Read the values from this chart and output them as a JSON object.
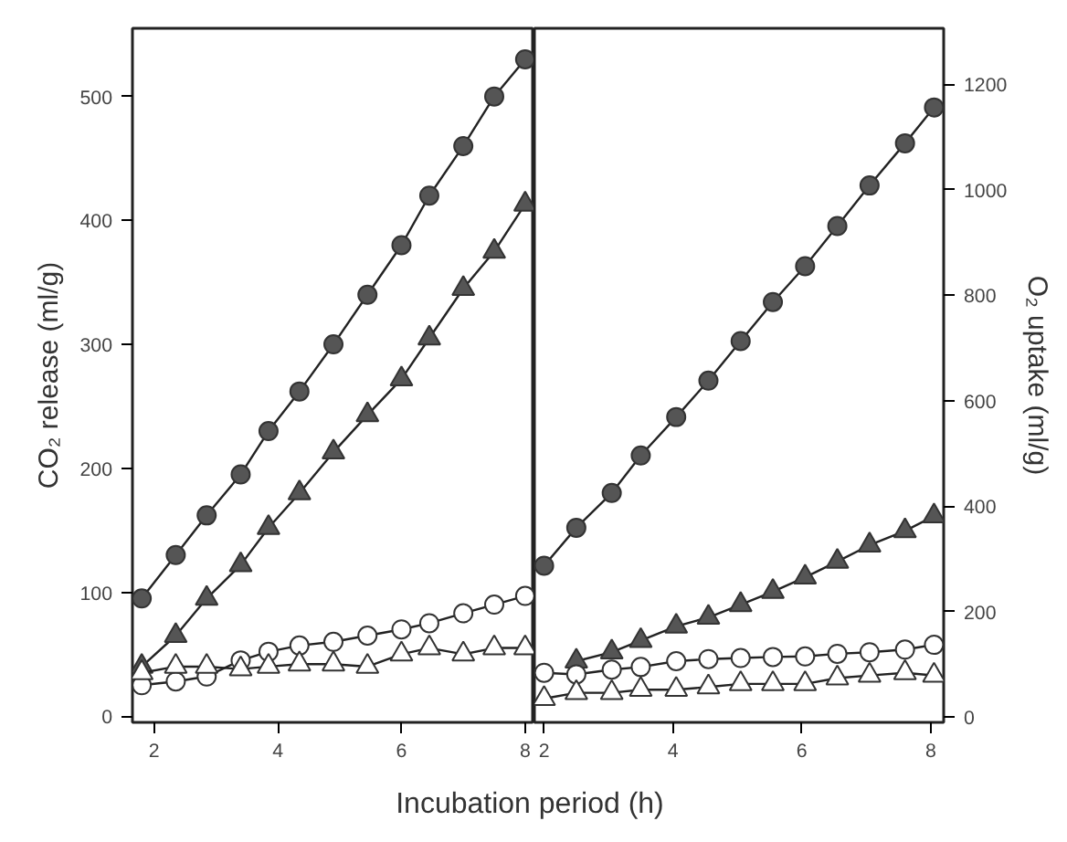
{
  "chart_data": [
    {
      "type": "line",
      "xlabel": "Incubation period (h)",
      "ylabel": "CO₂ release (ml/g)",
      "xlim": [
        1.65,
        8.15
      ],
      "xticks": [
        2,
        4,
        6,
        8
      ],
      "ylim": [
        -5,
        555
      ],
      "yticks": [
        0,
        100,
        200,
        300,
        400,
        500
      ],
      "grid": false,
      "series": [
        {
          "color": "#555555",
          "marker": "circle",
          "x": [
            1.8,
            2.35,
            2.85,
            3.4,
            3.85,
            4.35,
            4.9,
            5.45,
            6.0,
            6.45,
            7.0,
            7.5,
            8.0
          ],
          "values": [
            95,
            130,
            162,
            195,
            230,
            262,
            300,
            340,
            380,
            420,
            460,
            500,
            530
          ]
        },
        {
          "color": "#555555",
          "marker": "triangle",
          "x": [
            1.8,
            2.35,
            2.85,
            3.4,
            3.85,
            4.35,
            4.9,
            5.45,
            6.0,
            6.45,
            7.0,
            7.5,
            8.0
          ],
          "values": [
            40,
            65,
            95,
            122,
            152,
            180,
            213,
            243,
            272,
            305,
            345,
            375,
            413
          ]
        },
        {
          "color": "#ffffff",
          "marker": "circle",
          "x": [
            1.8,
            2.35,
            2.85,
            3.4,
            3.85,
            4.35,
            4.9,
            5.45,
            6.0,
            6.45,
            7.0,
            7.5,
            8.0
          ],
          "values": [
            25,
            28,
            32,
            45,
            52,
            57,
            60,
            65,
            70,
            75,
            83,
            90,
            97
          ]
        },
        {
          "color": "#ffffff",
          "marker": "triangle",
          "x": [
            1.8,
            2.35,
            2.85,
            3.4,
            3.85,
            4.35,
            4.9,
            5.45,
            6.0,
            6.45,
            7.0,
            7.5,
            8.0
          ],
          "values": [
            35,
            40,
            40,
            38,
            40,
            42,
            42,
            40,
            50,
            55,
            50,
            55,
            55
          ]
        }
      ]
    },
    {
      "type": "line",
      "y2label": "O₂ uptake (ml/g)",
      "xlim": [
        1.85,
        8.2
      ],
      "xticks": [
        2,
        4,
        6,
        8
      ],
      "y2lim": [
        -10,
        1306
      ],
      "y2ticks": [
        0,
        200,
        400,
        600,
        800,
        1000,
        1200
      ],
      "grid": false,
      "series": [
        {
          "color": "#555555",
          "marker": "circle",
          "axis": "y2",
          "x": [
            2.0,
            2.5,
            3.05,
            3.5,
            4.05,
            4.55,
            5.05,
            5.55,
            6.05,
            6.55,
            7.05,
            7.6,
            8.05
          ],
          "values": [
            287,
            359,
            425,
            496,
            569,
            638,
            713,
            787,
            855,
            931,
            1008,
            1088,
            1156
          ]
        },
        {
          "color": "#555555",
          "marker": "triangle",
          "axis": "y2",
          "x": [
            2.5,
            3.05,
            3.5,
            4.05,
            4.55,
            5.05,
            5.55,
            6.05,
            6.55,
            7.05,
            7.6,
            8.05
          ],
          "values": [
            106,
            123,
            145,
            172,
            189,
            213,
            238,
            265,
            295,
            326,
            353,
            381
          ]
        },
        {
          "color": "#ffffff",
          "marker": "circle",
          "axis": "y2",
          "x": [
            2.0,
            2.5,
            3.05,
            3.5,
            4.05,
            4.55,
            5.05,
            5.55,
            6.05,
            6.55,
            7.05,
            7.6,
            8.05
          ],
          "values": [
            84,
            81,
            90,
            95,
            106,
            110,
            112,
            114,
            115,
            120,
            123,
            128,
            137
          ]
        },
        {
          "color": "#ffffff",
          "marker": "triangle",
          "axis": "y2",
          "x": [
            2.0,
            2.5,
            3.05,
            3.5,
            4.05,
            4.55,
            5.05,
            5.55,
            6.05,
            6.55,
            7.05,
            7.6,
            8.05
          ],
          "values": [
            35,
            46,
            46,
            52,
            52,
            57,
            63,
            63,
            63,
            74,
            79,
            84,
            79
          ]
        }
      ]
    }
  ]
}
